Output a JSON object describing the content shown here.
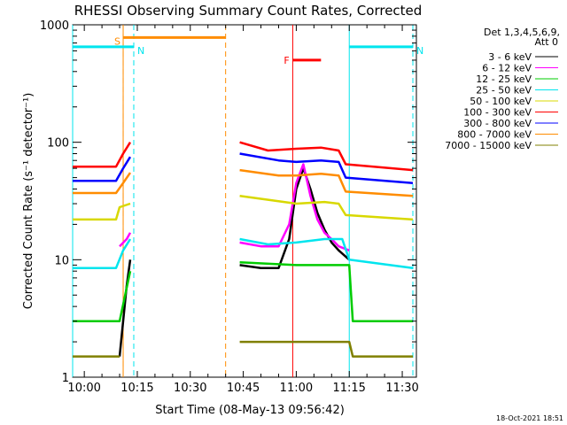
{
  "chart_data": {
    "type": "line",
    "title": "RHESSI Observing Summary Count Rates, Corrected",
    "xlabel": "Start Time (08-May-13 09:56:42)",
    "ylabel": "Corrected Count Rate (s⁻¹ detector⁻¹)",
    "yscale": "log",
    "ylim": [
      1,
      1000
    ],
    "xlim": [
      "09:56:42",
      "11:34:00"
    ],
    "x_ticks": [
      "10:00",
      "10:15",
      "10:30",
      "10:45",
      "11:00",
      "11:15",
      "11:30"
    ],
    "y_ticks": [
      "1",
      "10",
      "100",
      "1000"
    ],
    "grid": false,
    "legend_position": "top-right",
    "legend_header": [
      "Det 1,3,4,5,6,9,",
      "Att 0"
    ],
    "series": [
      {
        "name": "3 - 6 keV",
        "color": "#000000",
        "x": [
          "10:10",
          "10:11",
          "10:12",
          "10:13",
          "10:44",
          "10:50",
          "10:55",
          "10:58",
          "11:00",
          "11:02",
          "11:04",
          "11:06",
          "11:08",
          "11:10",
          "11:12",
          "11:15"
        ],
        "y": [
          1.5,
          3,
          6,
          10,
          9,
          8.5,
          8.5,
          15,
          40,
          60,
          40,
          25,
          18,
          14,
          12,
          10
        ]
      },
      {
        "name": "6 - 12 keV",
        "color": "#ff00ff",
        "x": [
          "10:10",
          "10:12",
          "10:13",
          "10:44",
          "10:50",
          "10:55",
          "10:58",
          "11:00",
          "11:02",
          "11:04",
          "11:06",
          "11:08",
          "11:10",
          "11:12",
          "11:15"
        ],
        "y": [
          13,
          15,
          17,
          14,
          13,
          13,
          20,
          45,
          65,
          35,
          22,
          17,
          15,
          13,
          12
        ]
      },
      {
        "name": "12 - 25 keV",
        "color": "#00cc00",
        "x": [
          "09:56:42",
          "10:10",
          "10:13",
          "10:44",
          "11:00",
          "11:15",
          "11:16",
          "11:33"
        ],
        "y": [
          3,
          3,
          8,
          9.5,
          9,
          9,
          3,
          3
        ]
      },
      {
        "name": "25 - 50 keV",
        "color": "#00e5ee",
        "x": [
          "09:56:42",
          "10:09",
          "10:11",
          "10:13",
          "10:44",
          "10:52",
          "11:00",
          "11:08",
          "11:13",
          "11:15",
          "11:33"
        ],
        "y": [
          8.5,
          8.5,
          12,
          15,
          15,
          13.5,
          14,
          15,
          15,
          10,
          8.5
        ]
      },
      {
        "name": "50 - 100 keV",
        "color": "#d8d800",
        "x": [
          "09:56:42",
          "10:09",
          "10:10",
          "10:13",
          "10:44",
          "11:00",
          "11:08",
          "11:12",
          "11:14",
          "11:33"
        ],
        "y": [
          22,
          22,
          28,
          30,
          35,
          30,
          31,
          30,
          24,
          22
        ]
      },
      {
        "name": "100 - 300 keV",
        "color": "#ff0000",
        "x": [
          "09:56:42",
          "10:09",
          "10:11",
          "10:13",
          "10:44",
          "10:52",
          "11:00",
          "11:07",
          "11:12",
          "11:14",
          "11:33"
        ],
        "y": [
          62,
          62,
          80,
          100,
          100,
          85,
          88,
          90,
          85,
          65,
          58
        ]
      },
      {
        "name": "300 - 800 keV",
        "color": "#0000ff",
        "x": [
          "09:56:42",
          "10:09",
          "10:11",
          "10:13",
          "10:44",
          "10:55",
          "11:00",
          "11:07",
          "11:12",
          "11:14",
          "11:33"
        ],
        "y": [
          47,
          47,
          60,
          75,
          80,
          70,
          68,
          70,
          68,
          50,
          45
        ]
      },
      {
        "name": "800 - 7000 keV",
        "color": "#ff8c00",
        "x": [
          "09:56:42",
          "10:09",
          "10:11",
          "10:13",
          "10:44",
          "10:55",
          "11:00",
          "11:07",
          "11:12",
          "11:14",
          "11:33"
        ],
        "y": [
          37,
          37,
          45,
          55,
          58,
          52,
          52,
          54,
          52,
          38,
          35
        ]
      },
      {
        "name": "7000 - 15000 keV",
        "color": "#808000",
        "x": [
          "09:56:42",
          "10:10",
          "10:44",
          "11:15",
          "11:16",
          "11:33"
        ],
        "y": [
          1.5,
          1.5,
          2,
          2,
          1.5,
          1.5
        ]
      }
    ],
    "annotations": [
      {
        "label": "S",
        "color": "#ff8c00",
        "kind": "saa",
        "x_start": "10:11",
        "x_end": "10:40",
        "level": 780
      },
      {
        "label": "N",
        "color": "#00e5ee",
        "kind": "night",
        "x_start": "09:56:42",
        "x_end": "10:14",
        "level": 650
      },
      {
        "label": "N",
        "color": "#00e5ee",
        "kind": "night",
        "x_start": "11:15",
        "x_end": "11:33",
        "level": 650
      },
      {
        "label": "F",
        "color": "#ff0000",
        "kind": "flare",
        "x_start": "10:59",
        "x_end": "11:07",
        "level": 500
      }
    ],
    "vlines": [
      {
        "x": "10:11",
        "color": "#ff8c00"
      },
      {
        "x": "10:40",
        "color": "#ff8c00"
      },
      {
        "x": "10:14",
        "color": "#00e5ee"
      },
      {
        "x": "11:33",
        "color": "#00e5ee"
      }
    ],
    "data_gap": [
      "10:13",
      "10:44"
    ],
    "timestamp": "18-Oct-2021 18:51"
  }
}
